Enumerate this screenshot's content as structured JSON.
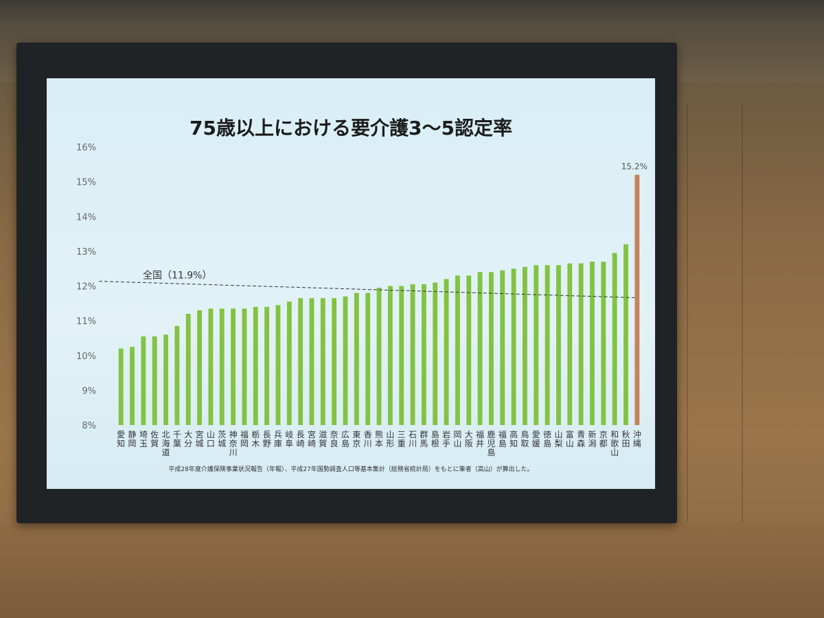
{
  "chart_data": {
    "type": "bar",
    "title": "75歳以上における要介護3～5認定率",
    "ylim": [
      8,
      16
    ],
    "yticks": [
      "8%",
      "9%",
      "10%",
      "11%",
      "12%",
      "13%",
      "14%",
      "15%",
      "16%"
    ],
    "categories": [
      "愛知",
      "静岡",
      "埼玉",
      "佐賀",
      "北海道",
      "千葉",
      "大分",
      "宮城",
      "山口",
      "茨城",
      "神奈川",
      "福岡",
      "栃木",
      "長野",
      "兵庫",
      "岐阜",
      "長崎",
      "宮崎",
      "滋賀",
      "奈良",
      "広島",
      "東京",
      "香川",
      "熊本",
      "山形",
      "三重",
      "石川",
      "群馬",
      "島根",
      "岩手",
      "岡山",
      "大阪",
      "福井",
      "鹿児島",
      "福島",
      "高知",
      "鳥取",
      "愛媛",
      "徳島",
      "山梨",
      "富山",
      "青森",
      "新潟",
      "京都",
      "和歌山",
      "秋田",
      "沖縄"
    ],
    "values": [
      10.2,
      10.25,
      10.55,
      10.55,
      10.6,
      10.85,
      11.2,
      11.3,
      11.35,
      11.35,
      11.35,
      11.35,
      11.4,
      11.4,
      11.45,
      11.55,
      11.65,
      11.65,
      11.65,
      11.65,
      11.7,
      11.8,
      11.8,
      11.95,
      12.0,
      12.0,
      12.05,
      12.05,
      12.1,
      12.2,
      12.3,
      12.3,
      12.4,
      12.4,
      12.45,
      12.5,
      12.55,
      12.6,
      12.6,
      12.6,
      12.65,
      12.65,
      12.7,
      12.7,
      12.95,
      13.2,
      15.2
    ],
    "highlight_index": 46,
    "highlight_label": "15.2%",
    "reference_value": 11.9,
    "reference_label": "全国（11.9%）",
    "bar_color": "#82c341",
    "highlight_color": "#c8825a",
    "note": "平成28年度介護保険事業状況報告（年報）、平成27年国勢調査人口等基本集計（総務省統計局）をもとに筆者（高山）が算出した。"
  }
}
